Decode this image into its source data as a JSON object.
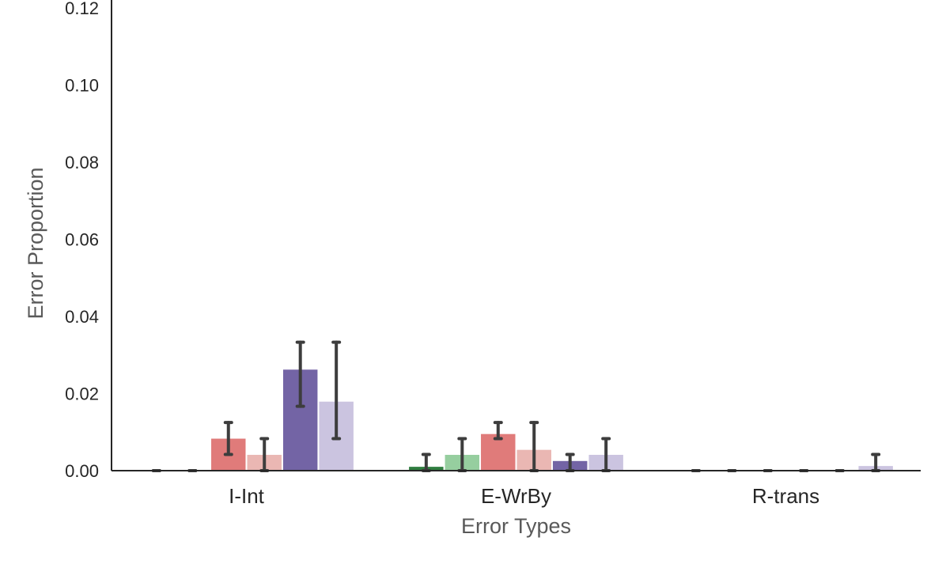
{
  "chart_data": {
    "type": "bar",
    "title": "",
    "xlabel": "Error Types",
    "ylabel": "Error Proportion",
    "categories": [
      "I-Int",
      "E-WrBy",
      "R-trans"
    ],
    "ylim": [
      0,
      0.12
    ],
    "yticks": [
      0.0,
      0.02,
      0.04,
      0.06,
      0.08,
      0.1,
      0.12
    ],
    "grid": false,
    "legend": "none",
    "series": [
      {
        "color": "#2f7d3f",
        "values": [
          0.0,
          0.001,
          0.0
        ],
        "error_low": [
          0.0,
          0.0,
          0.0
        ],
        "error_high": [
          0.0,
          0.0042,
          0.0
        ]
      },
      {
        "color": "#96ce9f",
        "values": [
          0.0,
          0.0041,
          0.0
        ],
        "error_low": [
          0.0,
          0.0,
          0.0
        ],
        "error_high": [
          0.0,
          0.0083,
          0.0
        ]
      },
      {
        "color": "#e07b7a",
        "values": [
          0.0083,
          0.0095,
          0.0
        ],
        "error_low": [
          0.0042,
          0.0083,
          0.0
        ],
        "error_high": [
          0.0125,
          0.0125,
          0.0
        ]
      },
      {
        "color": "#eab7b3",
        "values": [
          0.0041,
          0.0054,
          0.0
        ],
        "error_low": [
          0.0,
          0.0,
          0.0
        ],
        "error_high": [
          0.0083,
          0.0125,
          0.0
        ]
      },
      {
        "color": "#7364a5",
        "values": [
          0.0262,
          0.0025,
          0.0
        ],
        "error_low": [
          0.0167,
          0.0,
          0.0
        ],
        "error_high": [
          0.0333,
          0.0042,
          0.0
        ]
      },
      {
        "color": "#cbc4e0",
        "values": [
          0.0179,
          0.0041,
          0.0012
        ],
        "error_low": [
          0.0083,
          0.0,
          0.0
        ],
        "error_high": [
          0.0333,
          0.0083,
          0.0042
        ]
      }
    ]
  }
}
